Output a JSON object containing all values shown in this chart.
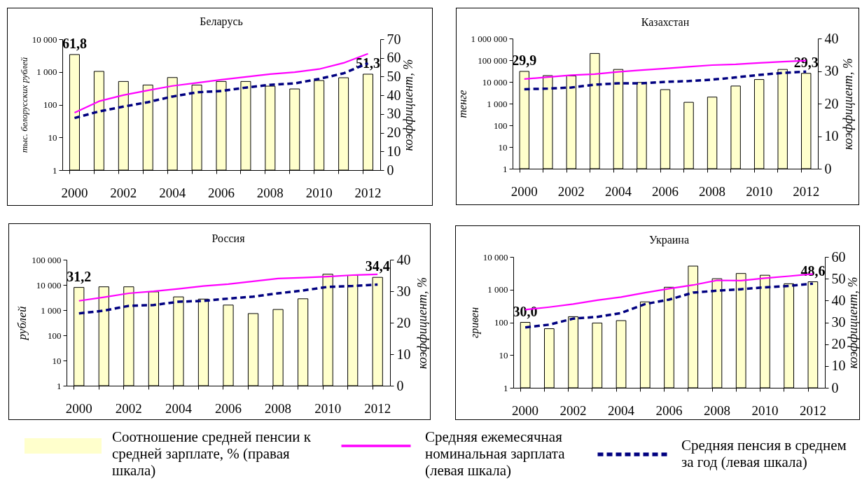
{
  "chart_data": [
    {
      "type": "bar",
      "title": "Беларусь",
      "ylabel": "тыс. белорусских рублей",
      "y2label": "коэффициент, %",
      "categories": [
        "2000",
        null,
        "2002",
        null,
        "2004",
        null,
        "2006",
        null,
        "2008",
        null,
        "2010",
        null,
        "2012"
      ],
      "log": "y",
      "ylim": [
        1,
        10000
      ],
      "yticks": [
        1,
        10,
        100,
        {
          "value": 1000,
          "label": "1 000"
        },
        {
          "value": 10000,
          "label": "10 000"
        }
      ],
      "y2lim": [
        0,
        70
      ],
      "y2ticks": [
        0,
        10,
        20,
        30,
        40,
        50,
        60,
        70
      ],
      "series": [
        {
          "axis": "y2",
          "color": "#ffffcc",
          "values": [
            61.8,
            52.8,
            47.4,
            45.5,
            49.5,
            45.5,
            47.4,
            47.4,
            44.9,
            43.4,
            47.9,
            49.4,
            51.3
          ],
          "value_labels": [
            "61,8",
            null,
            null,
            null,
            null,
            null,
            null,
            null,
            null,
            null,
            null,
            null,
            "51,3"
          ]
        },
        {
          "type": "line",
          "color": "#ff00ff",
          "line_style": "solid",
          "values": [
            57,
            127,
            195,
            273,
            374,
            464,
            576,
            702,
            855,
            980,
            1220,
            1880,
            3590
          ]
        },
        {
          "type": "line",
          "color": "#000080",
          "line_style": "dashed",
          "values": [
            39,
            62,
            87,
            119,
            177,
            238,
            262,
            332,
            404,
            446,
            611,
            906,
            1850
          ]
        }
      ]
    },
    {
      "type": "bar",
      "title": "Казахстан",
      "ylabel": "тенге",
      "y2label": "коэффициент, %",
      "categories": [
        "2000",
        null,
        "2002",
        null,
        "2004",
        null,
        "2006",
        null,
        "2008",
        null,
        "2010",
        null,
        "2012"
      ],
      "log": "y",
      "ylim": [
        1,
        1000000
      ],
      "yticks": [
        1,
        10,
        100,
        {
          "value": 1000,
          "label": "1 000"
        },
        {
          "value": 10000,
          "label": "10 000"
        },
        {
          "value": 100000,
          "label": "100 000"
        },
        {
          "value": 1000000,
          "label": "1 000 000"
        }
      ],
      "y2lim": [
        0,
        40
      ],
      "y2ticks": [
        0,
        10,
        20,
        30,
        40
      ],
      "series": [
        {
          "axis": "y2",
          "color": "#ffffcc",
          "values": [
            29.9,
            28.6,
            28.5,
            35.4,
            30.5,
            26.5,
            24.3,
            20.4,
            22.0,
            25.4,
            27.4,
            30.5,
            29.3
          ],
          "value_labels": [
            "29,9",
            null,
            null,
            null,
            null,
            null,
            null,
            null,
            null,
            null,
            null,
            null,
            "29,3"
          ]
        },
        {
          "type": "line",
          "color": "#ff00ff",
          "line_style": "solid",
          "values": [
            13500,
            16600,
            20400,
            23000,
            29200,
            34800,
            41600,
            49800,
            59400,
            65000,
            75400,
            84900,
            95700
          ]
        },
        {
          "type": "line",
          "color": "#000080",
          "line_style": "dashed",
          "values": [
            4620,
            4900,
            5520,
            7430,
            8610,
            8610,
            10000,
            10900,
            12700,
            16100,
            21000,
            25900,
            30000
          ]
        }
      ]
    },
    {
      "type": "bar",
      "title": "Россия",
      "ylabel": "рублей",
      "y2label": "коэффициент, %",
      "categories": [
        "2000",
        null,
        "2002",
        null,
        "2004",
        null,
        "2006",
        null,
        "2008",
        null,
        "2010",
        null,
        "2012"
      ],
      "log": "y",
      "ylim": [
        1,
        100000
      ],
      "yticks": [
        1,
        10,
        100,
        {
          "value": 1000,
          "label": "1 000"
        },
        {
          "value": 10000,
          "label": "10 000"
        },
        {
          "value": 100000,
          "label": "100 000"
        }
      ],
      "y2lim": [
        0,
        40
      ],
      "y2ticks": [
        0,
        10,
        20,
        30,
        40
      ],
      "legend": "bottom",
      "series": [
        {
          "name": "Соотношение средней пенсии к средней зарплате, % (правая шкала)",
          "axis": "y2",
          "color": "#ffffcc",
          "values": [
            31.2,
            31.4,
            31.4,
            29.8,
            28.2,
            27.5,
            25.6,
            22.9,
            24.2,
            27.6,
            35.4,
            35.0,
            34.4
          ],
          "value_labels": [
            "31,2",
            null,
            null,
            null,
            null,
            null,
            null,
            null,
            null,
            null,
            null,
            null,
            "34,4"
          ]
        },
        {
          "name": "Средняя ежемесячная номинальная зарплата (левая шкала)",
          "type": "line",
          "color": "#ff00ff",
          "line_style": "solid",
          "values": [
            2330,
            3250,
            4640,
            5550,
            6990,
            9030,
            10800,
            13900,
            18000,
            19400,
            21500,
            24500,
            26400
          ]
        },
        {
          "name": "Средняя пенсия в среднем за год (левая шкала)",
          "type": "line",
          "color": "#000080",
          "line_style": "dashed",
          "values": [
            740,
            950,
            1470,
            1590,
            2150,
            2330,
            2860,
            3420,
            4640,
            6000,
            8360,
            9030,
            10300
          ]
        }
      ]
    },
    {
      "type": "bar",
      "title": "Украина",
      "ylabel": "гривен",
      "y2label": "коэффициент, %",
      "categories": [
        "2000",
        null,
        "2002",
        null,
        "2004",
        null,
        "2006",
        null,
        "2008",
        null,
        "2010",
        null,
        "2012"
      ],
      "log": "y",
      "ylim": [
        1,
        10000
      ],
      "yticks": [
        1,
        10,
        100,
        {
          "value": 1000,
          "label": "1 000"
        },
        {
          "value": 10000,
          "label": "10 000"
        }
      ],
      "y2lim": [
        0,
        60
      ],
      "y2ticks": [
        0,
        10,
        20,
        30,
        40,
        50,
        60
      ],
      "series": [
        {
          "axis": "y2",
          "color": "#ffffcc",
          "values": [
            30.0,
            27.1,
            32.6,
            29.7,
            30.8,
            39.4,
            46.1,
            55.8,
            50.0,
            52.4,
            51.6,
            47.7,
            48.6
          ],
          "value_labels": [
            "30,0",
            null,
            null,
            null,
            null,
            null,
            null,
            null,
            null,
            null,
            null,
            null,
            "48,6"
          ]
        },
        {
          "type": "line",
          "color": "#ff00ff",
          "line_style": "solid",
          "values": [
            244,
            292,
            362,
            476,
            591,
            809,
            1070,
            1380,
            1920,
            1880,
            2250,
            2580,
            3020
          ]
        },
        {
          "type": "line",
          "color": "#000080",
          "line_style": "dashed",
          "values": [
            70,
            85,
            130,
            147,
            193,
            362,
            496,
            809,
            929,
            1030,
            1180,
            1300,
            1520
          ]
        }
      ]
    }
  ]
}
